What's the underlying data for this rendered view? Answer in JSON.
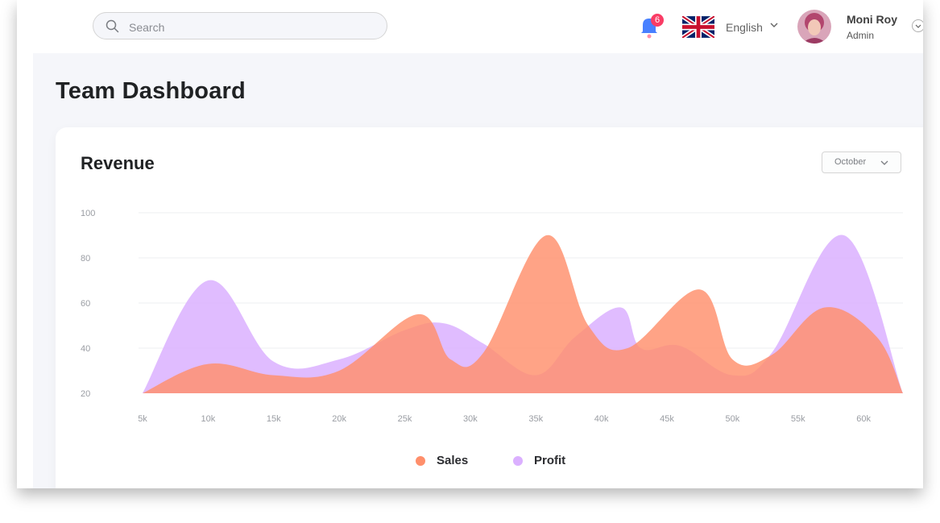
{
  "header": {
    "search_placeholder": "Search",
    "notification_count": "6",
    "language": "English",
    "user_name": "Moni Roy",
    "user_role": "Admin"
  },
  "page": {
    "title": "Team Dashboard"
  },
  "card": {
    "title": "Revenue",
    "month_selected": "October"
  },
  "colors": {
    "sales": "#ff8f6b",
    "profit": "#dbb0ff",
    "badge": "#f93c65",
    "bell": "#4880ff"
  },
  "chart_data": {
    "type": "area",
    "title": "Revenue",
    "xlabel": "",
    "ylabel": "",
    "x_ticks": [
      "5k",
      "10k",
      "15k",
      "20k",
      "25k",
      "30k",
      "35k",
      "40k",
      "45k",
      "50k",
      "55k",
      "60k"
    ],
    "y_ticks": [
      "100",
      "80",
      "60",
      "40",
      "20"
    ],
    "ylim": [
      20,
      100
    ],
    "xlim": [
      5000,
      63000
    ],
    "grid": "horizontal",
    "legend_position": "bottom",
    "series": [
      {
        "name": "Profit",
        "color": "#dbb0ff",
        "points": [
          [
            5000,
            20
          ],
          [
            10000,
            70
          ],
          [
            15000,
            34
          ],
          [
            20000,
            35
          ],
          [
            25000,
            48
          ],
          [
            28000,
            51
          ],
          [
            31000,
            42
          ],
          [
            35000,
            28
          ],
          [
            38000,
            45
          ],
          [
            41500,
            58
          ],
          [
            43000,
            40
          ],
          [
            46000,
            41
          ],
          [
            50000,
            28
          ],
          [
            53000,
            38
          ],
          [
            58500,
            90
          ],
          [
            63000,
            20
          ]
        ]
      },
      {
        "name": "Sales",
        "color": "#ff8f6b",
        "points": [
          [
            5000,
            20
          ],
          [
            10000,
            33
          ],
          [
            15000,
            28
          ],
          [
            20000,
            30
          ],
          [
            26000,
            55
          ],
          [
            28500,
            35
          ],
          [
            31000,
            38
          ],
          [
            35800,
            90
          ],
          [
            39000,
            50
          ],
          [
            42000,
            40
          ],
          [
            47500,
            66
          ],
          [
            50000,
            35
          ],
          [
            53000,
            37
          ],
          [
            57000,
            58
          ],
          [
            61000,
            45
          ],
          [
            63000,
            20
          ]
        ]
      }
    ]
  }
}
